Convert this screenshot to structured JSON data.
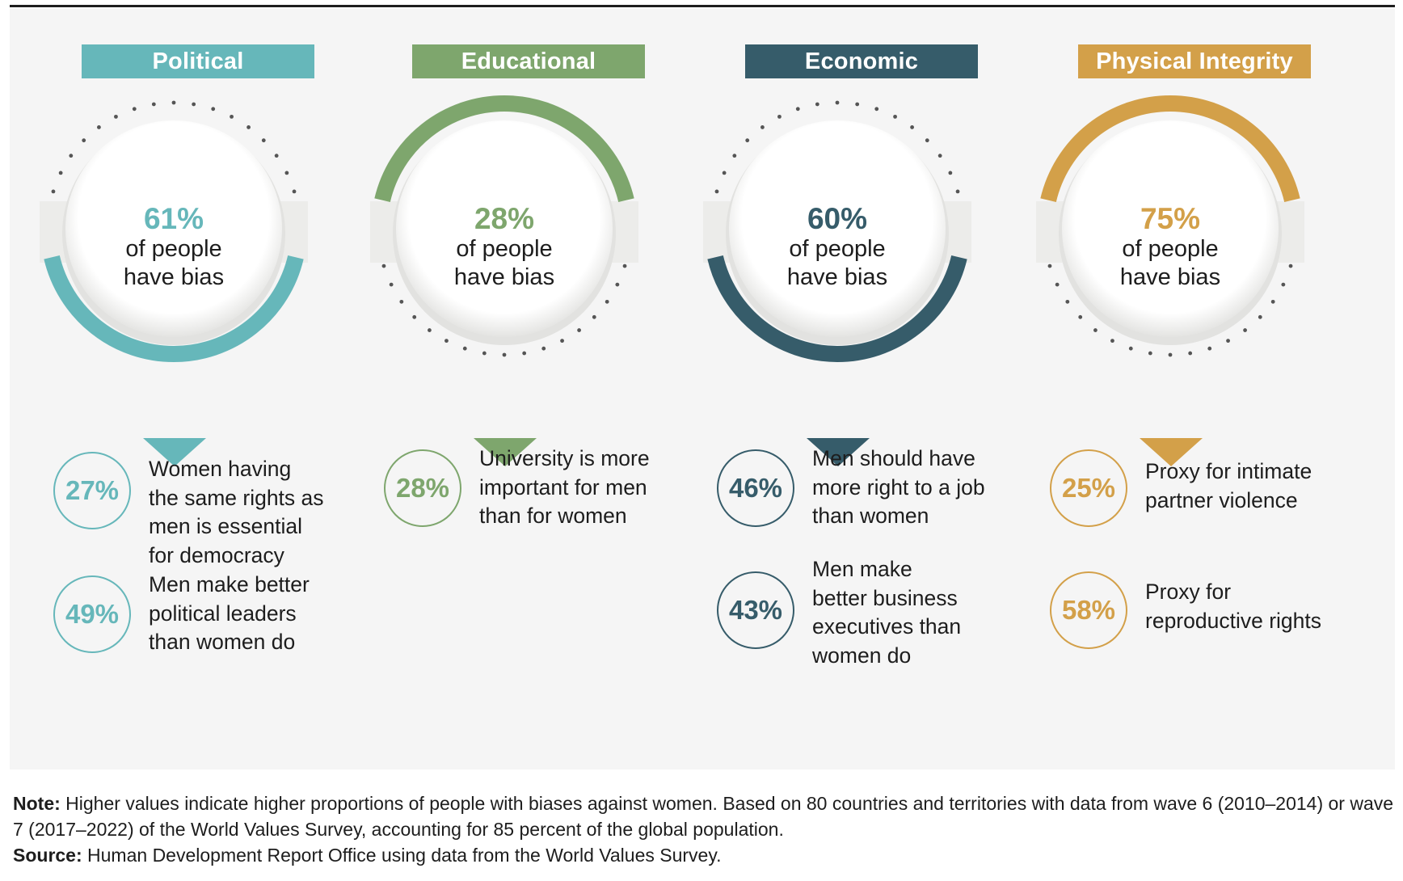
{
  "chart_data": {
    "type": "infographic",
    "title": "",
    "categories": [
      {
        "name": "Political",
        "color": "#66b7ba",
        "headline_value": "61%",
        "headline_text": [
          "of people",
          "have bias"
        ],
        "items": [
          {
            "value": "27%",
            "text": [
              "Women having",
              "the same rights as",
              "men is essential",
              "for democracy"
            ]
          },
          {
            "value": "49%",
            "text": [
              "Men make better",
              "political leaders",
              "than women do"
            ]
          }
        ]
      },
      {
        "name": "Educational",
        "color": "#7ea66d",
        "headline_value": "28%",
        "headline_text": [
          "of people",
          "have bias"
        ],
        "items": [
          {
            "value": "28%",
            "text": [
              "University is more",
              "important for men",
              "than for women"
            ]
          }
        ]
      },
      {
        "name": "Economic",
        "color": "#365c6a",
        "headline_value": "60%",
        "headline_text": [
          "of people",
          "have bias"
        ],
        "items": [
          {
            "value": "46%",
            "text": [
              "Men should have",
              "more right to a job",
              "than women"
            ]
          },
          {
            "value": "43%",
            "text": [
              "Men make",
              "better business",
              "executives than",
              "women do"
            ]
          }
        ]
      },
      {
        "name": "Physical Integrity",
        "color": "#d3a049",
        "headline_value": "75%",
        "headline_text": [
          "of people",
          "have bias"
        ],
        "items": [
          {
            "value": "25%",
            "text": [
              "Proxy for intimate",
              "partner violence"
            ]
          },
          {
            "value": "58%",
            "text": [
              "Proxy for",
              "reproductive rights"
            ]
          }
        ]
      }
    ],
    "headline_percentages": [
      61,
      28,
      60,
      75
    ]
  },
  "notes": {
    "note_label": "Note:",
    "note_text": " Higher values indicate higher proportions of people with biases against women. Based on 80 countries and territories with data from wave 6 (2010–2014) or wave 7 (2017–2022) of the World Values Survey, accounting for 85 percent of the global population.",
    "source_label": "Source:",
    "source_text": " Human Development Report Office using data from the World Values Survey."
  }
}
